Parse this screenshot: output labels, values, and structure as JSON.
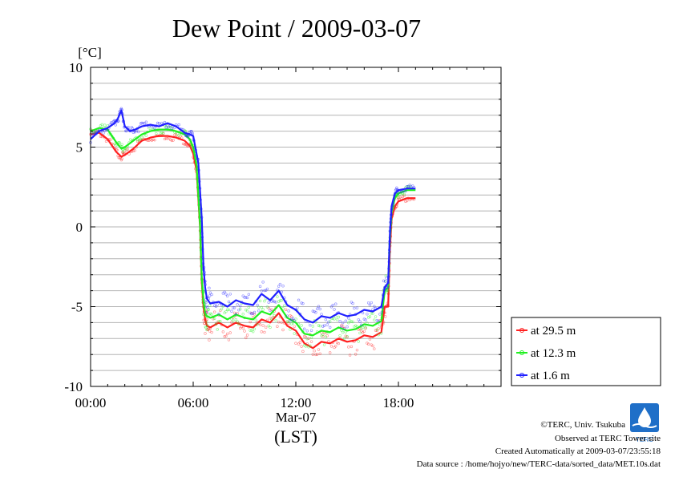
{
  "chart_data": {
    "type": "line",
    "title": "Dew Point / 2009-03-07",
    "ylabel": "[°C]",
    "xlabel_date": "Mar-07",
    "xlabel": "(LST)",
    "ylim": [
      -10,
      10
    ],
    "xlim_hours": [
      0,
      24
    ],
    "x_ticks": [
      {
        "h": 0,
        "label": "00:00"
      },
      {
        "h": 6,
        "label": "06:00"
      },
      {
        "h": 12,
        "label": "12:00"
      },
      {
        "h": 18,
        "label": "18:00"
      }
    ],
    "y_ticks": [
      {
        "v": 10,
        "label": "10"
      },
      {
        "v": 5,
        "label": "5"
      },
      {
        "v": 0,
        "label": "0"
      },
      {
        "v": -5,
        "label": "-5"
      },
      {
        "v": -10,
        "label": "-10"
      }
    ],
    "grid": true,
    "legend_position": "bottom-right, outside plot",
    "series": [
      {
        "name": "at 29.5 m",
        "color": "#ff2020",
        "x": [
          0,
          0.5,
          1,
          1.5,
          1.8,
          2,
          2.5,
          3,
          3.5,
          4,
          4.5,
          5,
          5.5,
          5.8,
          6,
          6.2,
          6.4,
          6.5,
          6.6,
          6.7,
          6.8,
          7,
          7.5,
          8,
          8.5,
          9,
          9.5,
          10,
          10.5,
          11,
          11.5,
          12,
          12.5,
          13,
          13.5,
          14,
          14.5,
          15,
          15.5,
          16,
          16.5,
          17,
          17.2,
          17.4,
          17.5,
          17.6,
          17.8,
          18,
          18.5,
          19
        ],
        "y": [
          5.8,
          5.9,
          5.5,
          4.7,
          4.4,
          4.5,
          4.9,
          5.4,
          5.6,
          5.7,
          5.7,
          5.6,
          5.4,
          5.1,
          4.6,
          3.5,
          0,
          -3.5,
          -5.0,
          -5.8,
          -6.2,
          -6.3,
          -6.0,
          -6.3,
          -6.0,
          -6.2,
          -6.3,
          -5.8,
          -6.0,
          -5.4,
          -6.2,
          -6.5,
          -7.3,
          -7.6,
          -7.2,
          -7.3,
          -7.0,
          -7.2,
          -7.1,
          -6.8,
          -6.9,
          -6.6,
          -5.0,
          -5.0,
          -1.5,
          0.5,
          1.3,
          1.6,
          1.8,
          1.8
        ]
      },
      {
        "name": "at 12.3 m",
        "color": "#20f020",
        "x": [
          0,
          0.5,
          1,
          1.5,
          1.8,
          2,
          2.5,
          3,
          3.5,
          4,
          4.5,
          5,
          5.5,
          5.8,
          6,
          6.2,
          6.4,
          6.5,
          6.6,
          6.7,
          6.8,
          7,
          7.5,
          8,
          8.5,
          9,
          9.5,
          10,
          10.5,
          11,
          11.5,
          12,
          12.5,
          13,
          13.5,
          14,
          14.5,
          15,
          15.5,
          16,
          16.5,
          17,
          17.2,
          17.4,
          17.5,
          17.6,
          17.8,
          18,
          18.5,
          19
        ],
        "y": [
          6.0,
          6.2,
          6.1,
          5.3,
          4.9,
          5.0,
          5.4,
          5.8,
          6.0,
          6.1,
          6.1,
          6.0,
          5.8,
          5.5,
          5.0,
          3.8,
          0.2,
          -3.2,
          -4.6,
          -5.4,
          -5.6,
          -5.7,
          -5.5,
          -5.8,
          -5.5,
          -5.7,
          -5.8,
          -5.3,
          -5.5,
          -4.9,
          -5.7,
          -6.0,
          -6.7,
          -6.8,
          -6.5,
          -6.6,
          -6.3,
          -6.5,
          -6.4,
          -6.1,
          -6.2,
          -5.9,
          -4.0,
          -3.8,
          -0.8,
          1.0,
          1.8,
          2.1,
          2.3,
          2.3
        ]
      },
      {
        "name": "at 1.6 m",
        "color": "#2020ff",
        "x": [
          0,
          0.5,
          1,
          1.4,
          1.6,
          1.8,
          2,
          2.3,
          2.6,
          3,
          3.5,
          4,
          4.5,
          5,
          5.5,
          5.8,
          6,
          6.3,
          6.5,
          6.6,
          6.7,
          6.8,
          7,
          7.5,
          8,
          8.5,
          9,
          9.5,
          10,
          10.5,
          11,
          11.5,
          12,
          12.5,
          13,
          13.5,
          14,
          14.5,
          15,
          15.5,
          16,
          16.5,
          17,
          17.2,
          17.4,
          17.5,
          17.6,
          17.8,
          18,
          18.5,
          19
        ],
        "y": [
          5.5,
          6.0,
          6.2,
          6.5,
          6.8,
          7.3,
          6.3,
          6.0,
          6.1,
          6.3,
          6.4,
          6.3,
          6.5,
          6.3,
          5.9,
          5.8,
          5.7,
          4.0,
          0.5,
          -2.5,
          -3.8,
          -4.5,
          -4.8,
          -4.7,
          -5.0,
          -4.6,
          -4.8,
          -4.9,
          -4.2,
          -4.6,
          -4.0,
          -4.9,
          -5.2,
          -5.8,
          -6.0,
          -5.6,
          -5.7,
          -5.4,
          -5.6,
          -5.5,
          -5.2,
          -5.3,
          -5.0,
          -3.8,
          -3.5,
          -0.5,
          1.3,
          2.1,
          2.3,
          2.4,
          2.4
        ]
      }
    ]
  },
  "footer": {
    "copyright": "©TERC, Univ. Tsukuba",
    "observed": "Observed at TERC Tower site",
    "created": "Created Automatically at 2009-03-07/23:55:18",
    "source": "Data source : /home/hojyo/new/TERC-data/sorted_data/MET.10s.dat",
    "logo_text": "TERC"
  }
}
